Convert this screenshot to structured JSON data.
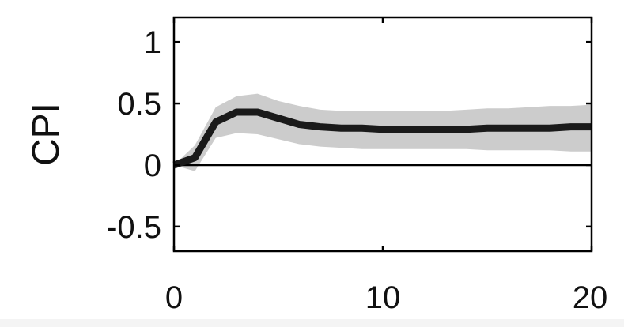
{
  "chart_data": {
    "type": "line",
    "title": "",
    "xlabel": "",
    "ylabel": "CPI",
    "xlim": [
      0,
      20
    ],
    "ylim": [
      -0.7,
      1.2
    ],
    "x_ticks": [
      0,
      10,
      20
    ],
    "x_tick_labels": [
      "0",
      "10",
      "20"
    ],
    "y_ticks": [
      -0.5,
      0,
      0.5,
      1
    ],
    "y_tick_labels": [
      "-0.5",
      "0",
      "0.5",
      "1"
    ],
    "grid": false,
    "zero_line": true,
    "series": [
      {
        "x": [
          0,
          1,
          2,
          3,
          4,
          5,
          6,
          7,
          8,
          9,
          10,
          11,
          12,
          13,
          14,
          15,
          16,
          17,
          18,
          19,
          20
        ],
        "values": [
          0.0,
          0.06,
          0.35,
          0.43,
          0.43,
          0.38,
          0.33,
          0.31,
          0.3,
          0.3,
          0.29,
          0.29,
          0.29,
          0.29,
          0.29,
          0.3,
          0.3,
          0.3,
          0.3,
          0.31,
          0.31
        ],
        "band_lower": [
          0.0,
          -0.05,
          0.22,
          0.26,
          0.25,
          0.21,
          0.17,
          0.15,
          0.14,
          0.13,
          0.13,
          0.13,
          0.13,
          0.13,
          0.13,
          0.12,
          0.12,
          0.12,
          0.12,
          0.11,
          0.11
        ],
        "band_upper": [
          0.0,
          0.16,
          0.47,
          0.56,
          0.58,
          0.52,
          0.48,
          0.45,
          0.44,
          0.44,
          0.44,
          0.44,
          0.44,
          0.44,
          0.45,
          0.46,
          0.46,
          0.47,
          0.48,
          0.48,
          0.49
        ]
      }
    ],
    "colors": {
      "line": "#1a1a1a",
      "band": "#cccccc",
      "axis": "#000000"
    }
  }
}
